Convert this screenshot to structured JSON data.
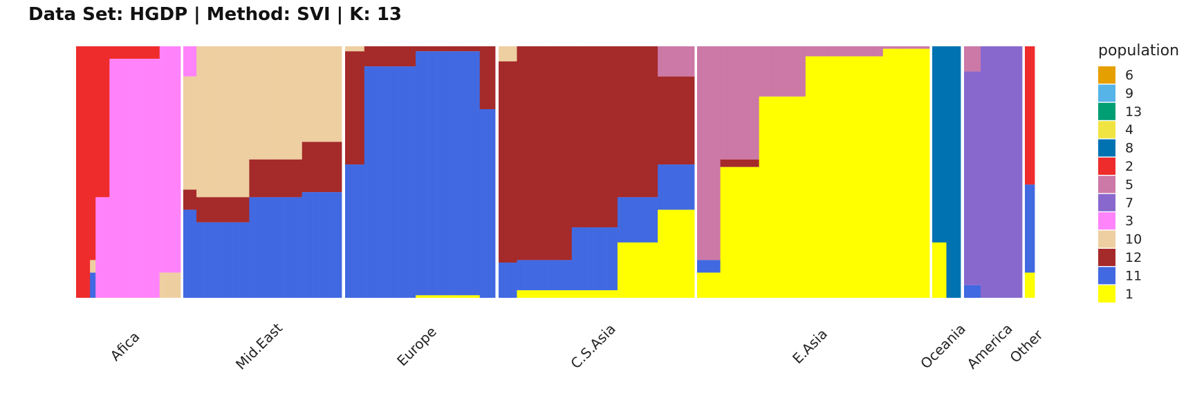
{
  "chart_data": {
    "type": "stacked_bar",
    "title": "Data Set: HGDP | Method: SVI | K: 13",
    "xlabel": "",
    "ylabel": "",
    "ylim": [
      0,
      1
    ],
    "legend_title": "population",
    "legend_position": "right",
    "grid": false,
    "stack_order_top_to_bottom": [
      "6",
      "9",
      "13",
      "4",
      "8",
      "2",
      "5",
      "7",
      "3",
      "10",
      "12",
      "11",
      "1"
    ],
    "legend": [
      {
        "label": "6",
        "color": "#E69F00"
      },
      {
        "label": "9",
        "color": "#56B4E9"
      },
      {
        "label": "13",
        "color": "#009E73"
      },
      {
        "label": "4",
        "color": "#F0E442"
      },
      {
        "label": "8",
        "color": "#0072B2"
      },
      {
        "label": "2",
        "color": "#EE2C2C"
      },
      {
        "label": "5",
        "color": "#CC79A7"
      },
      {
        "label": "7",
        "color": "#8968CD"
      },
      {
        "label": "3",
        "color": "#FF83FA"
      },
      {
        "label": "10",
        "color": "#EECFA1"
      },
      {
        "label": "12",
        "color": "#A52A2A"
      },
      {
        "label": "11",
        "color": "#4169E1"
      },
      {
        "label": "1",
        "color": "#FFFF00"
      }
    ],
    "groups": [
      {
        "name": "Afica",
        "segments": [
          {
            "n": 10,
            "p": {
              "2": 1.0
            }
          },
          {
            "n": 4,
            "p": {
              "2": 0.85,
              "10": 0.05,
              "11": 0.1
            }
          },
          {
            "n": 10,
            "p": {
              "2": 0.6,
              "3": 0.4
            }
          },
          {
            "n": 36,
            "p": {
              "2": 0.05,
              "3": 0.95
            }
          },
          {
            "n": 15,
            "p": {
              "3": 0.9,
              "10": 0.1
            }
          }
        ]
      },
      {
        "name": "Mid.East",
        "segments": [
          {
            "n": 10,
            "p": {
              "3": 0.12,
              "10": 0.45,
              "12": 0.08,
              "11": 0.35
            }
          },
          {
            "n": 40,
            "p": {
              "10": 0.6,
              "12": 0.1,
              "11": 0.3
            }
          },
          {
            "n": 40,
            "p": {
              "10": 0.45,
              "12": 0.15,
              "11": 0.4
            }
          },
          {
            "n": 30,
            "p": {
              "10": 0.38,
              "12": 0.2,
              "11": 0.42
            }
          }
        ]
      },
      {
        "name": "Europe",
        "segments": [
          {
            "n": 15,
            "p": {
              "10": 0.02,
              "12": 0.45,
              "11": 0.53
            }
          },
          {
            "n": 40,
            "p": {
              "12": 0.08,
              "11": 0.92
            }
          },
          {
            "n": 50,
            "p": {
              "12": 0.02,
              "11": 0.97,
              "1": 0.01
            }
          },
          {
            "n": 12,
            "p": {
              "12": 0.25,
              "11": 0.75
            }
          }
        ]
      },
      {
        "name": "C.S.Asia",
        "segments": [
          {
            "n": 10,
            "p": {
              "10": 0.06,
              "12": 0.8,
              "11": 0.14
            }
          },
          {
            "n": 30,
            "p": {
              "12": 0.85,
              "11": 0.12,
              "1": 0.03
            }
          },
          {
            "n": 25,
            "p": {
              "12": 0.72,
              "11": 0.25,
              "1": 0.03
            }
          },
          {
            "n": 22,
            "p": {
              "12": 0.6,
              "11": 0.18,
              "1": 0.22
            }
          },
          {
            "n": 20,
            "p": {
              "5": 0.12,
              "12": 0.35,
              "11": 0.18,
              "1": 0.35
            }
          }
        ]
      },
      {
        "name": "E.Asia",
        "segments": [
          {
            "n": 15,
            "p": {
              "5": 0.85,
              "11": 0.05,
              "1": 0.1
            }
          },
          {
            "n": 25,
            "p": {
              "5": 0.45,
              "12": 0.03,
              "1": 0.52
            }
          },
          {
            "n": 30,
            "p": {
              "5": 0.2,
              "1": 0.8
            }
          },
          {
            "n": 50,
            "p": {
              "5": 0.04,
              "1": 0.96
            }
          },
          {
            "n": 30,
            "p": {
              "5": 0.01,
              "1": 0.99
            }
          }
        ]
      },
      {
        "name": "Oceania",
        "segments": [
          {
            "n": 15,
            "p": {
              "8": 0.78,
              "1": 0.22
            }
          },
          {
            "n": 15,
            "p": {
              "8": 1.0
            }
          }
        ]
      },
      {
        "name": "America",
        "segments": [
          {
            "n": 10,
            "p": {
              "5": 0.1,
              "7": 0.85,
              "11": 0.05
            }
          },
          {
            "n": 25,
            "p": {
              "7": 1.0
            }
          }
        ]
      },
      {
        "name": "Other",
        "segments": [
          {
            "n": 6,
            "p": {
              "2": 0.55,
              "11": 0.35,
              "1": 0.1
            }
          }
        ]
      }
    ]
  }
}
